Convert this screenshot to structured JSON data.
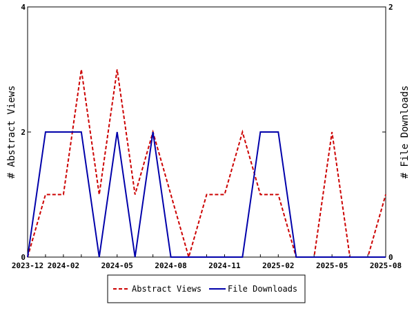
{
  "chart_data": {
    "type": "line",
    "x": [
      "2023-12",
      "2024-01",
      "2024-02",
      "2024-03",
      "2024-04",
      "2024-05",
      "2024-06",
      "2024-07",
      "2024-08",
      "2024-09",
      "2024-10",
      "2024-11",
      "2024-12",
      "2025-01",
      "2025-02",
      "2025-03",
      "2025-04",
      "2025-05",
      "2025-06",
      "2025-07",
      "2025-08"
    ],
    "x_ticks": [
      "2023-12",
      "2024-02",
      "2024-05",
      "2024-08",
      "2024-11",
      "2025-02",
      "2025-05",
      "2025-08"
    ],
    "series": [
      {
        "name": "Abstract Views",
        "axis": "left",
        "color": "#cc0000",
        "style": "dashed",
        "values": [
          0,
          1,
          1,
          3,
          1,
          3,
          1,
          2,
          1,
          0,
          1,
          1,
          2,
          1,
          1,
          0,
          0,
          2,
          0,
          0,
          1
        ]
      },
      {
        "name": "File Downloads",
        "axis": "right",
        "color": "#0000aa",
        "style": "solid",
        "values": [
          0,
          1,
          1,
          1,
          0,
          1,
          0,
          1,
          0,
          0,
          0,
          0,
          0,
          1,
          1,
          0,
          0,
          0,
          0,
          0,
          0
        ]
      }
    ],
    "y_left": {
      "label": "# Abstract Views",
      "range": [
        0,
        4
      ],
      "ticks": [
        "0",
        "2",
        "4"
      ]
    },
    "y_right": {
      "label": "# File Downloads",
      "range": [
        0,
        2
      ],
      "ticks": [
        "0",
        "1",
        "2"
      ],
      "tick_labels": [
        "0",
        "",
        "2"
      ]
    },
    "grid": false,
    "legend_placement": "bottom-center"
  }
}
